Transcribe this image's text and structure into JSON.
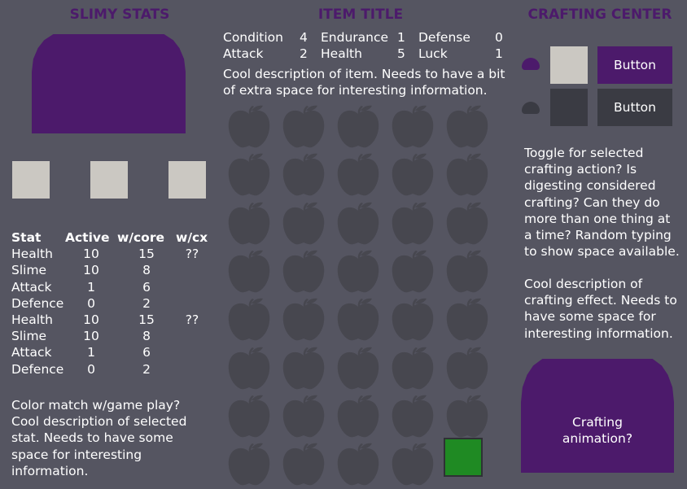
{
  "colors": {
    "background": "#555561",
    "purple": "#4c1a6b",
    "slot_light": "#cbc8c2",
    "slot_dark": "#3a3b43",
    "apple": "#47474f",
    "selected_slot": "#1f8a23"
  },
  "left_panel": {
    "title": "SLIMY STATS",
    "headers": [
      "Stat",
      "Active",
      "w/core",
      "w/cx"
    ],
    "rows": [
      [
        "Health",
        "10",
        "15",
        "??"
      ],
      [
        "Slime",
        "10",
        "8",
        ""
      ],
      [
        "Attack",
        "1",
        "6",
        ""
      ],
      [
        "Defence",
        "0",
        "2",
        ""
      ],
      [
        "Health",
        "10",
        "15",
        "??"
      ],
      [
        "Slime",
        "10",
        "8",
        ""
      ],
      [
        "Attack",
        "1",
        "6",
        ""
      ],
      [
        "Defence",
        "0",
        "2",
        ""
      ]
    ],
    "description": "Color match w/game play? Cool description of selected stat. Needs to have some space for interesting information."
  },
  "center_panel": {
    "title": "ITEM TITLE",
    "stats": [
      [
        {
          "label": "Condition",
          "value": "4"
        },
        {
          "label": "Endurance",
          "value": "1"
        },
        {
          "label": "Defense",
          "value": "0"
        }
      ],
      [
        {
          "label": "Attack",
          "value": "2"
        },
        {
          "label": "Health",
          "value": "5"
        },
        {
          "label": "Luck",
          "value": "1"
        }
      ]
    ],
    "description": "Cool description of item. Needs to have a bit of extra space for interesting information.",
    "grid": {
      "columns": 5,
      "rows": 8,
      "item_icon": "apple-icon",
      "selected_slot": {
        "row": 8,
        "column": 5
      }
    }
  },
  "right_panel": {
    "title": "CRAFTING CENTER",
    "buttons": [
      {
        "label": "Button",
        "active": true
      },
      {
        "label": "Button",
        "active": false
      }
    ],
    "toggle_text": "Toggle for selected crafting action? Is digesting considered crafting? Can they do more than one thing at a time? Random typing to show space available.",
    "effect_text": "Cool description of crafting effect. Needs to have some space for interesting information.",
    "animation_label": "Crafting animation?"
  }
}
